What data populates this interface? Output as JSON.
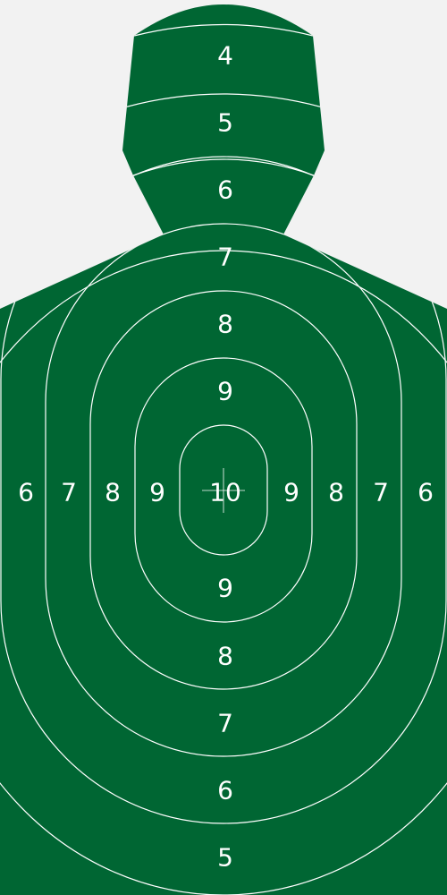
{
  "colors": {
    "background": "#f2f2f2",
    "target_fill": "#006633",
    "ring_lines": "#ffffff"
  },
  "head": {
    "scores": [
      "4",
      "5",
      "6"
    ]
  },
  "torso_vertical": {
    "top_scores": [
      "7",
      "8",
      "9"
    ],
    "center_score": "10",
    "bottom_scores": [
      "9",
      "8",
      "7",
      "6",
      "5"
    ]
  },
  "torso_horizontal": {
    "left_scores": [
      "6",
      "7",
      "8",
      "9"
    ],
    "right_scores": [
      "9",
      "8",
      "7",
      "6"
    ]
  }
}
